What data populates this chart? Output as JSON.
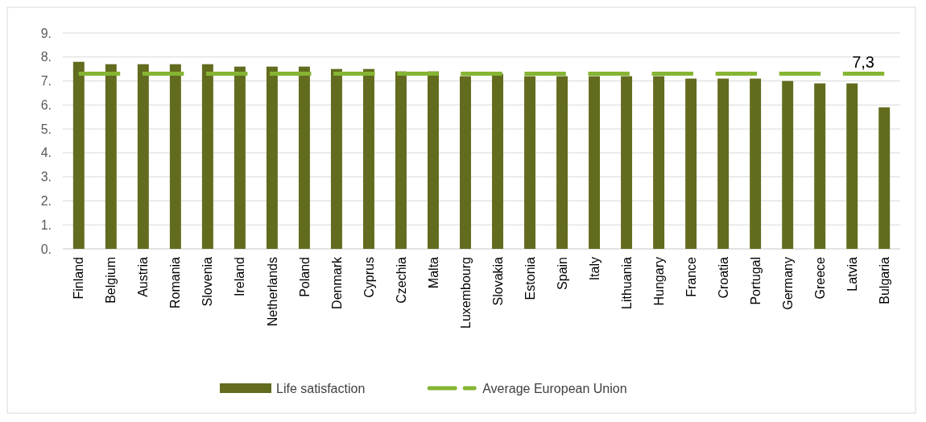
{
  "chart_data": {
    "type": "bar",
    "categories": [
      "Finland",
      "Belgium",
      "Austria",
      "Romania",
      "Slovenia",
      "Ireland",
      "Netherlands",
      "Poland",
      "Denmark",
      "Cyprus",
      "Czechia",
      "Malta",
      "Luxembourg",
      "Slovakia",
      "Estonia",
      "Spain",
      "Italy",
      "Lithuania",
      "Hungary",
      "France",
      "Croatia",
      "Portugal",
      "Germany",
      "Greece",
      "Latvia",
      "Bulgaria"
    ],
    "series": [
      {
        "name": "Life satisfaction",
        "color": "#636b1e",
        "values": [
          7.8,
          7.7,
          7.7,
          7.7,
          7.7,
          7.6,
          7.6,
          7.6,
          7.5,
          7.5,
          7.4,
          7.4,
          7.2,
          7.3,
          7.2,
          7.2,
          7.2,
          7.2,
          7.2,
          7.1,
          7.1,
          7.1,
          7.0,
          6.9,
          6.9,
          5.9
        ]
      },
      {
        "name": "Average European Union",
        "type": "line",
        "line_style": "dashed",
        "color": "#86b534",
        "values": [
          7.3,
          7.3,
          7.3,
          7.3,
          7.3,
          7.3,
          7.3,
          7.3,
          7.3,
          7.3,
          7.3,
          7.3,
          7.3,
          7.3,
          7.3,
          7.3,
          7.3,
          7.3,
          7.3,
          7.3,
          7.3,
          7.3,
          7.3,
          7.3,
          7.3,
          7.3
        ]
      }
    ],
    "annotations": [
      {
        "text": "7,3",
        "x": "Latvia",
        "y": 7.3
      }
    ],
    "ylim": [
      0,
      9
    ],
    "yticks": [
      {
        "value": 0,
        "label": "0."
      },
      {
        "value": 1,
        "label": "1."
      },
      {
        "value": 2,
        "label": "2."
      },
      {
        "value": 3,
        "label": "3."
      },
      {
        "value": 4,
        "label": "4."
      },
      {
        "value": 5,
        "label": "5."
      },
      {
        "value": 6,
        "label": "6."
      },
      {
        "value": 7,
        "label": "7."
      },
      {
        "value": 8,
        "label": "8."
      },
      {
        "value": 9,
        "label": "9."
      }
    ],
    "grid": "y",
    "legend": "bottom"
  }
}
